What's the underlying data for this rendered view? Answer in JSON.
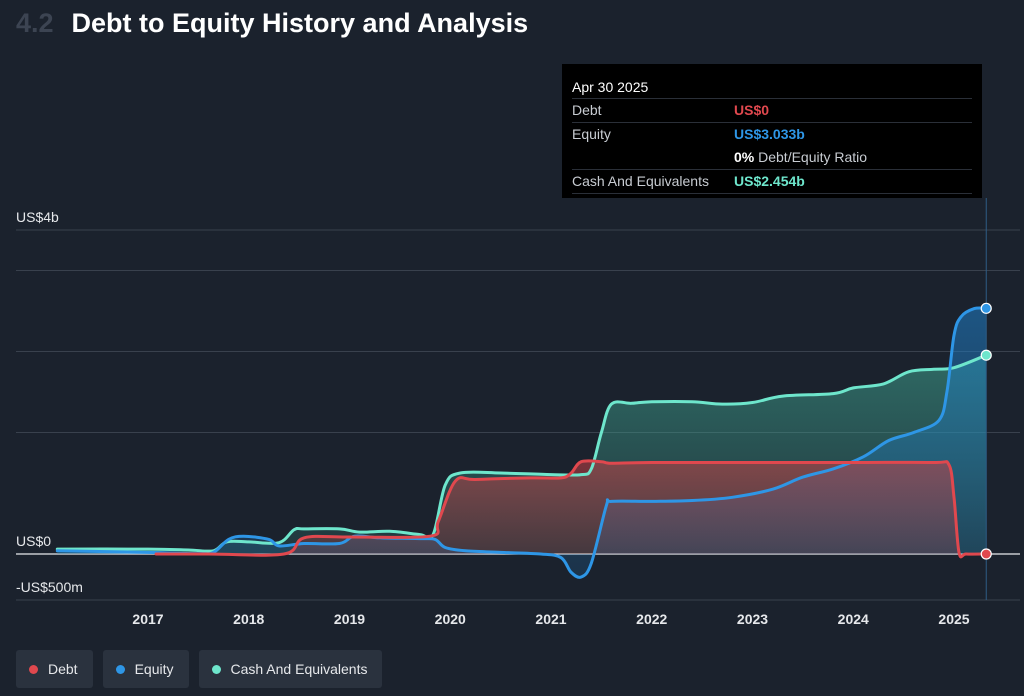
{
  "header": {
    "section_number": "4.2",
    "title": "Debt to Equity History and Analysis"
  },
  "tooltip": {
    "date": "Apr 30 2025",
    "rows": {
      "debt": {
        "label": "Debt",
        "value": "US$0"
      },
      "equity": {
        "label": "Equity",
        "value": "US$3.033b"
      },
      "ratio": {
        "value": "0%",
        "label": "Debt/Equity Ratio"
      },
      "cash": {
        "label": "Cash And Equivalents",
        "value": "US$2.454b"
      }
    }
  },
  "colors": {
    "debt": "#e0484e",
    "equity": "#2e96e6",
    "cash": "#6ee6cc"
  },
  "legend": [
    {
      "label": "Debt",
      "color": "#e0484e"
    },
    {
      "label": "Equity",
      "color": "#2e96e6"
    },
    {
      "label": "Cash And Equivalents",
      "color": "#6ee6cc"
    }
  ],
  "chart_data": {
    "type": "area",
    "title": "Debt to Equity History and Analysis",
    "y_unit": "US$ millions",
    "ylim": [
      -500,
      4000
    ],
    "y_tick_labels": [
      {
        "value": 4000,
        "label": "US$4b"
      },
      {
        "value": 0,
        "label": "US$0"
      },
      {
        "value": -500,
        "label": "-US$500m"
      }
    ],
    "y_gridlines": [
      4000,
      3500,
      2500,
      1500,
      0,
      -500
    ],
    "x_ticks": [
      "2017",
      "2018",
      "2019",
      "2020",
      "2021",
      "2022",
      "2023",
      "2024",
      "2025"
    ],
    "xlim": [
      2016.1,
      2025.7
    ],
    "legend_position": "bottom-left",
    "series": [
      {
        "name": "Debt",
        "key": "debt",
        "points": [
          [
            2017.08,
            0
          ],
          [
            2017.6,
            0
          ],
          [
            2018.35,
            0
          ],
          [
            2018.55,
            200
          ],
          [
            2019.0,
            210
          ],
          [
            2019.8,
            220
          ],
          [
            2019.88,
            400
          ],
          [
            2020.05,
            900
          ],
          [
            2020.25,
            920
          ],
          [
            2020.8,
            940
          ],
          [
            2021.1,
            940
          ],
          [
            2021.2,
            1000
          ],
          [
            2021.3,
            1140
          ],
          [
            2021.5,
            1140
          ],
          [
            2021.6,
            1120
          ],
          [
            2022.0,
            1130
          ],
          [
            2023.0,
            1130
          ],
          [
            2024.0,
            1130
          ],
          [
            2024.8,
            1130
          ],
          [
            2024.95,
            1100
          ],
          [
            2025.0,
            700
          ],
          [
            2025.05,
            20
          ],
          [
            2025.12,
            0
          ],
          [
            2025.32,
            0
          ]
        ]
      },
      {
        "name": "Equity",
        "key": "equity",
        "points": [
          [
            2016.1,
            40
          ],
          [
            2017.0,
            20
          ],
          [
            2017.5,
            5
          ],
          [
            2017.65,
            20
          ],
          [
            2017.8,
            180
          ],
          [
            2017.95,
            220
          ],
          [
            2018.2,
            180
          ],
          [
            2018.3,
            100
          ],
          [
            2018.55,
            130
          ],
          [
            2018.9,
            130
          ],
          [
            2019.05,
            220
          ],
          [
            2019.3,
            200
          ],
          [
            2019.7,
            190
          ],
          [
            2019.85,
            180
          ],
          [
            2019.95,
            80
          ],
          [
            2020.15,
            40
          ],
          [
            2020.5,
            20
          ],
          [
            2020.9,
            0
          ],
          [
            2021.1,
            -40
          ],
          [
            2021.2,
            -200
          ],
          [
            2021.3,
            -250
          ],
          [
            2021.4,
            -100
          ],
          [
            2021.55,
            600
          ],
          [
            2021.6,
            650
          ],
          [
            2022.0,
            650
          ],
          [
            2022.4,
            660
          ],
          [
            2022.8,
            700
          ],
          [
            2023.2,
            800
          ],
          [
            2023.5,
            950
          ],
          [
            2023.8,
            1050
          ],
          [
            2024.1,
            1200
          ],
          [
            2024.35,
            1400
          ],
          [
            2024.6,
            1500
          ],
          [
            2024.85,
            1650
          ],
          [
            2024.93,
            2000
          ],
          [
            2025.0,
            2700
          ],
          [
            2025.07,
            2930
          ],
          [
            2025.2,
            3030
          ],
          [
            2025.32,
            3033
          ]
        ]
      },
      {
        "name": "Cash And Equivalents",
        "key": "cash",
        "points": [
          [
            2016.1,
            60
          ],
          [
            2017.0,
            60
          ],
          [
            2017.4,
            50
          ],
          [
            2017.65,
            40
          ],
          [
            2017.78,
            150
          ],
          [
            2018.0,
            150
          ],
          [
            2018.3,
            140
          ],
          [
            2018.45,
            300
          ],
          [
            2018.55,
            310
          ],
          [
            2018.9,
            310
          ],
          [
            2019.1,
            270
          ],
          [
            2019.4,
            280
          ],
          [
            2019.7,
            240
          ],
          [
            2019.83,
            240
          ],
          [
            2019.95,
            850
          ],
          [
            2020.1,
            1000
          ],
          [
            2020.5,
            1000
          ],
          [
            2021.0,
            980
          ],
          [
            2021.3,
            980
          ],
          [
            2021.4,
            1050
          ],
          [
            2021.5,
            1500
          ],
          [
            2021.6,
            1850
          ],
          [
            2021.8,
            1860
          ],
          [
            2022.0,
            1880
          ],
          [
            2022.4,
            1880
          ],
          [
            2022.7,
            1850
          ],
          [
            2023.0,
            1870
          ],
          [
            2023.3,
            1950
          ],
          [
            2023.8,
            1980
          ],
          [
            2024.0,
            2050
          ],
          [
            2024.3,
            2100
          ],
          [
            2024.55,
            2250
          ],
          [
            2024.8,
            2280
          ],
          [
            2025.0,
            2300
          ],
          [
            2025.32,
            2454
          ]
        ]
      }
    ]
  }
}
